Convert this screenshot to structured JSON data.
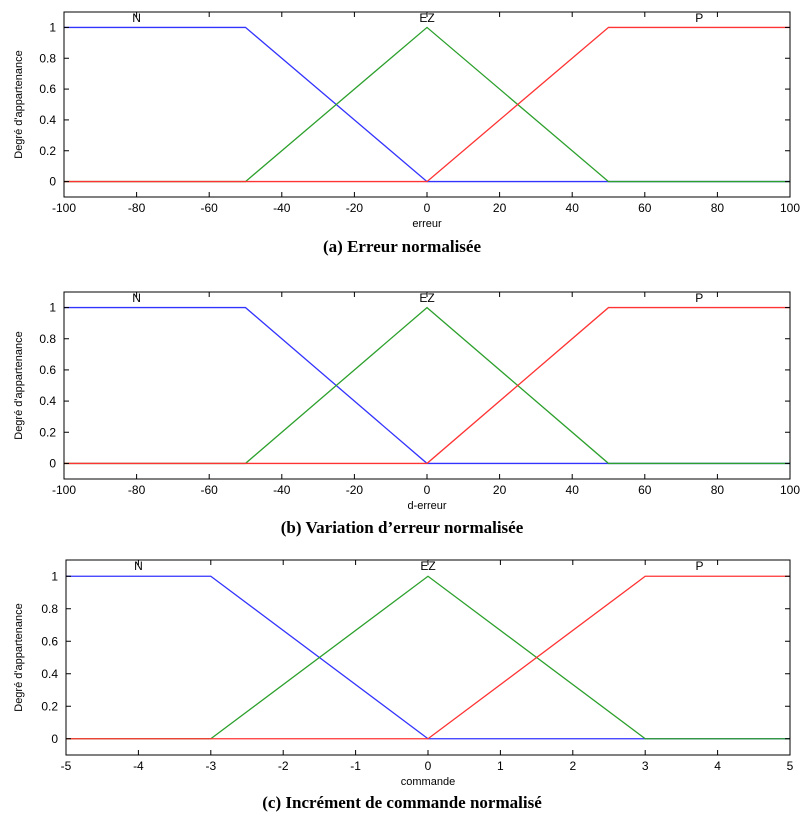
{
  "chart_data": [
    {
      "type": "line",
      "caption": "(a) Erreur normalisée",
      "xlabel": "erreur",
      "ylabel": "Degré d'appartenance",
      "xlim": [
        -100,
        100
      ],
      "ylim": [
        -0.1,
        1.1
      ],
      "xticks": [
        -100,
        -80,
        -60,
        -40,
        -20,
        0,
        20,
        40,
        60,
        80,
        100
      ],
      "xtick_labels": [
        "-100",
        "-80",
        "-60",
        "-40",
        "-20",
        "0",
        "20",
        "40",
        "60",
        "80",
        "100"
      ],
      "yticks": [
        0,
        0.2,
        0.4,
        0.6,
        0.8,
        1
      ],
      "ytick_labels": [
        "0",
        "0.2",
        "0.4",
        "0.6",
        "0.8",
        "1"
      ],
      "grid": false,
      "series": [
        {
          "name": "N",
          "color": "#3333ff",
          "x": [
            -100,
            -50,
            0,
            100
          ],
          "y": [
            1,
            1,
            0,
            0
          ],
          "label_x": -80
        },
        {
          "name": "EZ",
          "color": "#2ca02c",
          "x": [
            -100,
            -50,
            0,
            50,
            100
          ],
          "y": [
            0,
            0,
            1,
            0,
            0
          ],
          "label_x": 0
        },
        {
          "name": "P",
          "color": "#ff3333",
          "x": [
            -100,
            0,
            50,
            100
          ],
          "y": [
            0,
            0,
            1,
            1
          ],
          "label_x": 75
        }
      ]
    },
    {
      "type": "line",
      "caption": "(b) Variation d’erreur normalisée",
      "xlabel": "d-erreur",
      "ylabel": "Degré d'appartenance",
      "xlim": [
        -100,
        100
      ],
      "ylim": [
        -0.1,
        1.1
      ],
      "xticks": [
        -100,
        -80,
        -60,
        -40,
        -20,
        0,
        20,
        40,
        60,
        80,
        100
      ],
      "xtick_labels": [
        "-100",
        "-80",
        "-60",
        "-40",
        "-20",
        "0",
        "20",
        "40",
        "60",
        "80",
        "100"
      ],
      "yticks": [
        0,
        0.2,
        0.4,
        0.6,
        0.8,
        1
      ],
      "ytick_labels": [
        "0",
        "0.2",
        "0.4",
        "0.6",
        "0.8",
        "1"
      ],
      "grid": false,
      "series": [
        {
          "name": "N",
          "color": "#3333ff",
          "x": [
            -100,
            -50,
            0,
            100
          ],
          "y": [
            1,
            1,
            0,
            0
          ],
          "label_x": -80
        },
        {
          "name": "EZ",
          "color": "#2ca02c",
          "x": [
            -100,
            -50,
            0,
            50,
            100
          ],
          "y": [
            0,
            0,
            1,
            0,
            0
          ],
          "label_x": 0
        },
        {
          "name": "P",
          "color": "#ff3333",
          "x": [
            -100,
            0,
            50,
            100
          ],
          "y": [
            0,
            0,
            1,
            1
          ],
          "label_x": 75
        }
      ]
    },
    {
      "type": "line",
      "caption": "(c) Incrément de commande normalisé",
      "xlabel": "commande",
      "ylabel": "Degré d'appartenance",
      "xlim": [
        -5,
        5
      ],
      "ylim": [
        -0.1,
        1.1
      ],
      "xticks": [
        -5,
        -4,
        -3,
        -2,
        -1,
        0,
        1,
        2,
        3,
        4,
        5
      ],
      "xtick_labels": [
        "-5",
        "-4",
        "-3",
        "-2",
        "-1",
        "0",
        "1",
        "2",
        "3",
        "4",
        "5"
      ],
      "yticks": [
        0,
        0.2,
        0.4,
        0.6,
        0.8,
        1
      ],
      "ytick_labels": [
        "0",
        "0.2",
        "0.4",
        "0.6",
        "0.8",
        "1"
      ],
      "grid": false,
      "series": [
        {
          "name": "N",
          "color": "#3333ff",
          "x": [
            -5,
            -3,
            0,
            5
          ],
          "y": [
            1,
            1,
            0,
            0
          ],
          "label_x": -4
        },
        {
          "name": "EZ",
          "color": "#2ca02c",
          "x": [
            -5,
            -3,
            0,
            3,
            5
          ],
          "y": [
            0,
            0,
            1,
            0,
            0
          ],
          "label_x": 0
        },
        {
          "name": "P",
          "color": "#ff3333",
          "x": [
            -5,
            0,
            3,
            5
          ],
          "y": [
            0,
            0,
            1,
            1
          ],
          "label_x": 3.75
        }
      ]
    }
  ]
}
